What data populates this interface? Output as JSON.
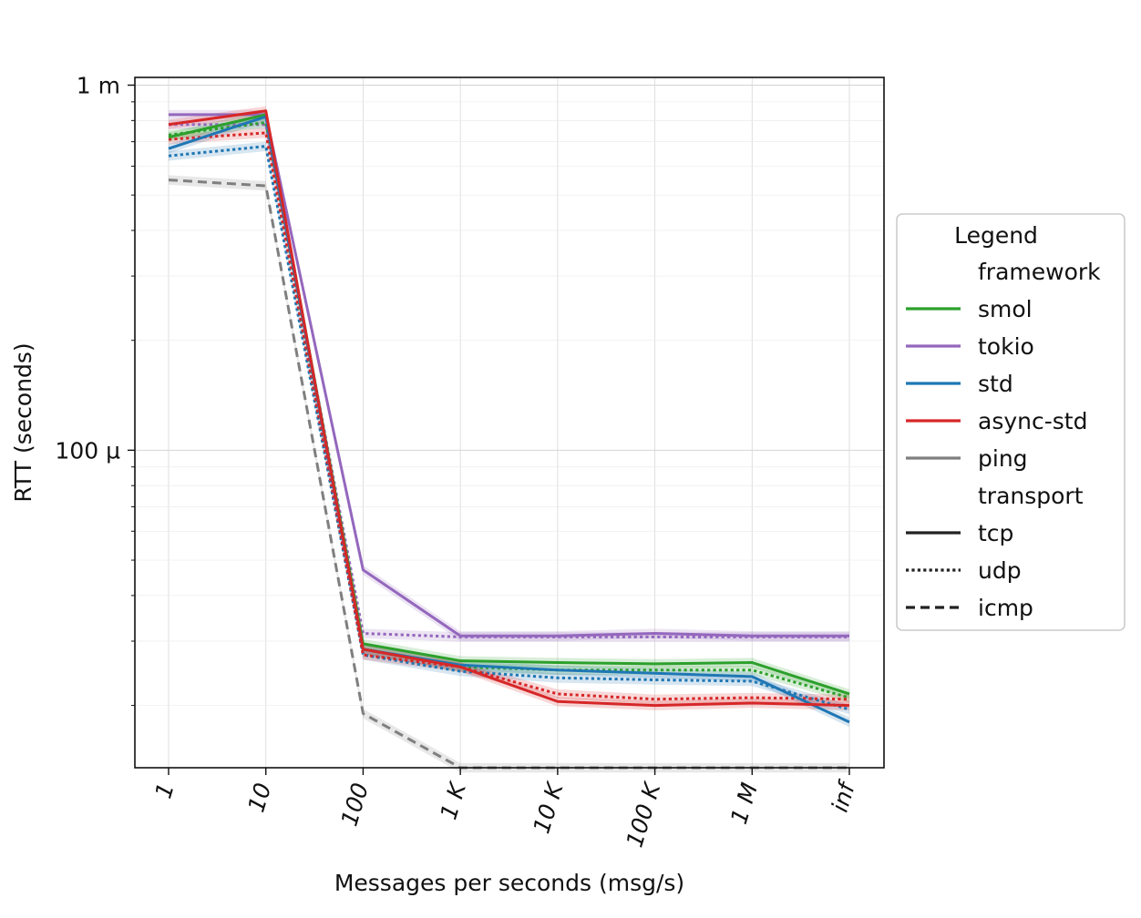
{
  "chart_data": {
    "type": "line",
    "title": "",
    "xlabel": "Messages per seconds (msg/s)",
    "ylabel": "RTT (seconds)",
    "yscale": "log",
    "ylim": [
      1.35e-05,
      0.00105
    ],
    "categories": [
      "1",
      "10",
      "100",
      "1 K",
      "10 K",
      "100 K",
      "1 M",
      "inf"
    ],
    "y_ticks": [
      {
        "value": 0.001,
        "label": "1 m"
      },
      {
        "value": 0.0001,
        "label": "100 µ"
      }
    ],
    "grid": true,
    "legend": {
      "title": "Legend",
      "placement": "center-right outside",
      "groups": [
        {
          "title": "framework",
          "entries": [
            {
              "label": "smol",
              "color": "#2ca02c",
              "style": "solid"
            },
            {
              "label": "tokio",
              "color": "#9467bd",
              "style": "solid"
            },
            {
              "label": "std",
              "color": "#1f77b4",
              "style": "solid"
            },
            {
              "label": "async-std",
              "color": "#d62728",
              "style": "solid"
            },
            {
              "label": "ping",
              "color": "#7f7f7f",
              "style": "solid"
            }
          ]
        },
        {
          "title": "transport",
          "entries": [
            {
              "label": "tcp",
              "color": "#222222",
              "style": "solid"
            },
            {
              "label": "udp",
              "color": "#222222",
              "style": "dotted"
            },
            {
              "label": "icmp",
              "color": "#222222",
              "style": "dashed"
            }
          ]
        }
      ]
    },
    "series": [
      {
        "name": "ping icmp",
        "framework": "ping",
        "transport": "icmp",
        "color": "#7f7f7f",
        "style": "dashed",
        "values": [
          0.00055,
          0.00053,
          1.9e-05,
          1.35e-05,
          1.35e-05,
          1.35e-05,
          1.35e-05,
          1.35e-05
        ],
        "band": 0.03
      },
      {
        "name": "tokio udp",
        "framework": "tokio",
        "transport": "udp",
        "color": "#9467bd",
        "style": "dotted",
        "values": [
          0.00078,
          0.00078,
          3.15e-05,
          3.08e-05,
          3.08e-05,
          3.08e-05,
          3.08e-05,
          3.08e-05
        ],
        "band": 0.03
      },
      {
        "name": "smol udp",
        "framework": "smol",
        "transport": "udp",
        "color": "#2ca02c",
        "style": "dotted",
        "values": [
          0.00073,
          0.00079,
          2.85e-05,
          2.55e-05,
          2.5e-05,
          2.5e-05,
          2.5e-05,
          2.1e-05
        ],
        "band": 0.03
      },
      {
        "name": "std udp",
        "framework": "std",
        "transport": "udp",
        "color": "#1f77b4",
        "style": "dotted",
        "values": [
          0.00064,
          0.00068,
          2.75e-05,
          2.48e-05,
          2.38e-05,
          2.35e-05,
          2.33e-05,
          1.95e-05
        ],
        "band": 0.03
      },
      {
        "name": "async-std udp",
        "framework": "async-std",
        "transport": "udp",
        "color": "#d62728",
        "style": "dotted",
        "values": [
          0.00071,
          0.00074,
          2.75e-05,
          2.55e-05,
          2.15e-05,
          2.08e-05,
          2.1e-05,
          2.08e-05
        ],
        "band": 0.03
      },
      {
        "name": "tokio tcp",
        "framework": "tokio",
        "transport": "tcp",
        "color": "#9467bd",
        "style": "solid",
        "values": [
          0.00083,
          0.00083,
          4.7e-05,
          3.1e-05,
          3.1e-05,
          3.15e-05,
          3.1e-05,
          3.1e-05
        ],
        "band": 0.03
      },
      {
        "name": "smol tcp",
        "framework": "smol",
        "transport": "tcp",
        "color": "#2ca02c",
        "style": "solid",
        "values": [
          0.00072,
          0.00083,
          2.95e-05,
          2.65e-05,
          2.62e-05,
          2.6e-05,
          2.62e-05,
          2.15e-05
        ],
        "band": 0.03
      },
      {
        "name": "std tcp",
        "framework": "std",
        "transport": "tcp",
        "color": "#1f77b4",
        "style": "solid",
        "values": [
          0.00067,
          0.00082,
          2.85e-05,
          2.58e-05,
          2.5e-05,
          2.45e-05,
          2.4e-05,
          1.8e-05
        ],
        "band": 0.03
      },
      {
        "name": "async-std tcp",
        "framework": "async-std",
        "transport": "tcp",
        "color": "#d62728",
        "style": "solid",
        "values": [
          0.00078,
          0.00085,
          2.85e-05,
          2.55e-05,
          2.05e-05,
          2e-05,
          2.03e-05,
          2e-05
        ],
        "band": 0.03
      }
    ]
  }
}
